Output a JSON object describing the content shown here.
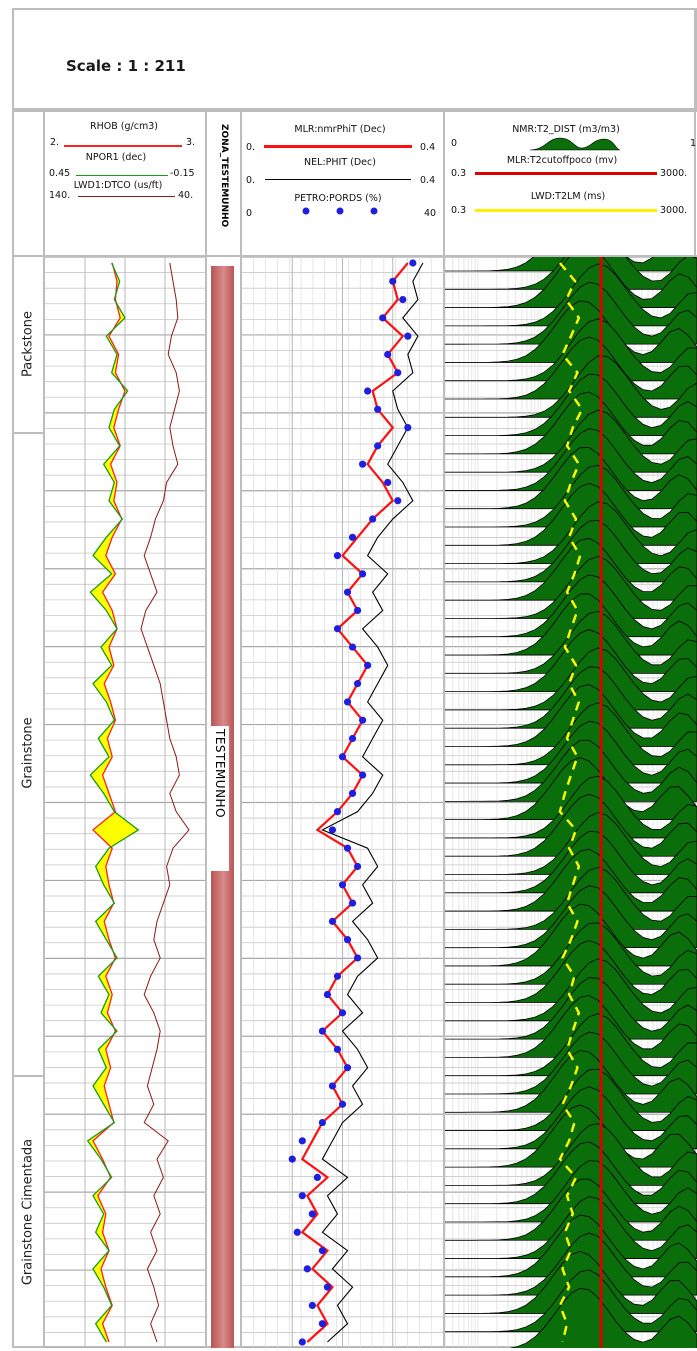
{
  "scale_label": "Scale : 1 : 211",
  "facies": [
    {
      "name": "Packstone"
    },
    {
      "name": "Grainstone"
    },
    {
      "name": "Grainstone Cimentada"
    }
  ],
  "zone": {
    "header": "ZONA_TESTEMUNHO",
    "label": "TESTEMUNHO"
  },
  "colors": {
    "rhob": "#ff2020",
    "npor": "#1a9a1a",
    "dtco": "#8b1a1a",
    "fill": "#ffff00",
    "nmr_phit": "#ff1010",
    "nel_phit": "#000000",
    "petro": "#1f1fe0",
    "t2dist": "#0a6e0a",
    "t2cutoff": "#dd0000",
    "t2lm": "#ffff00",
    "zone_bar": "#c96a6a",
    "grid": "#c8c8c8"
  },
  "tracks": {
    "track1": {
      "curves": [
        {
          "label": "RHOB (g/cm3)",
          "left": "2.",
          "right": "3."
        },
        {
          "label": "NPOR1 (dec)",
          "left": "0.45",
          "right": "-0.15"
        },
        {
          "label": "LWD1:DTCO (us/ft)",
          "left": "140.",
          "right": "40."
        }
      ]
    },
    "track3": {
      "curves": [
        {
          "label": "MLR:nmrPhiT (Dec)",
          "left": "0.",
          "right": "0.4"
        },
        {
          "label": "NEL:PHIT (Dec)",
          "left": "0.",
          "right": "0.4"
        },
        {
          "label": "PETRO:PORDS (%)",
          "left": "0",
          "right": "40"
        }
      ]
    },
    "track4": {
      "curves": [
        {
          "label": "NMR:T2_DIST (m3/m3)",
          "left": "0",
          "right": "1"
        },
        {
          "label": "MLR:T2cutoffpoco (mv)",
          "left": "0.3",
          "right": "3000."
        },
        {
          "label": "LWD:T2LM (ms)",
          "left": "0.3",
          "right": "3000."
        }
      ]
    }
  },
  "chart_data": {
    "type": "line",
    "depth_samples": 60,
    "facies_intervals": [
      {
        "name": "Packstone",
        "top_frac": 0.0,
        "base_frac": 0.16
      },
      {
        "name": "Grainstone",
        "top_frac": 0.16,
        "base_frac": 0.75
      },
      {
        "name": "Grainstone Cimentada",
        "top_frac": 0.75,
        "base_frac": 1.0
      }
    ],
    "series": [
      {
        "name": "RHOB",
        "range": [
          2.0,
          3.0
        ],
        "values": [
          2.42,
          2.45,
          2.44,
          2.47,
          2.4,
          2.46,
          2.44,
          2.5,
          2.46,
          2.43,
          2.47,
          2.41,
          2.45,
          2.43,
          2.48,
          2.42,
          2.38,
          2.44,
          2.36,
          2.42,
          2.45,
          2.4,
          2.43,
          2.37,
          2.41,
          2.44,
          2.39,
          2.42,
          2.36,
          2.4,
          2.44,
          2.3,
          2.42,
          2.38,
          2.4,
          2.43,
          2.37,
          2.4,
          2.44,
          2.38,
          2.42,
          2.39,
          2.44,
          2.38,
          2.41,
          2.37,
          2.4,
          2.43,
          2.3,
          2.36,
          2.41,
          2.33,
          2.38,
          2.36,
          2.4,
          2.35,
          2.38,
          2.42,
          2.36,
          2.4
        ]
      },
      {
        "name": "NPOR1",
        "range": [
          0.45,
          -0.15
        ],
        "values": [
          0.2,
          0.17,
          0.19,
          0.15,
          0.22,
          0.18,
          0.2,
          0.14,
          0.19,
          0.21,
          0.17,
          0.23,
          0.19,
          0.21,
          0.16,
          0.22,
          0.27,
          0.2,
          0.28,
          0.22,
          0.18,
          0.24,
          0.2,
          0.27,
          0.22,
          0.19,
          0.25,
          0.21,
          0.28,
          0.23,
          0.19,
          0.1,
          0.21,
          0.26,
          0.23,
          0.19,
          0.26,
          0.22,
          0.18,
          0.25,
          0.21,
          0.24,
          0.18,
          0.25,
          0.22,
          0.27,
          0.23,
          0.19,
          0.29,
          0.24,
          0.2,
          0.27,
          0.23,
          0.26,
          0.21,
          0.27,
          0.23,
          0.2,
          0.26,
          0.22
        ]
      },
      {
        "name": "DTCO",
        "range": [
          140,
          40
        ],
        "values": [
          62,
          60,
          58,
          57,
          61,
          63,
          58,
          56,
          59,
          62,
          60,
          57,
          64,
          66,
          71,
          74,
          78,
          74,
          70,
          77,
          80,
          76,
          72,
          68,
          66,
          64,
          62,
          58,
          56,
          62,
          58,
          50,
          60,
          64,
          62,
          66,
          70,
          72,
          68,
          74,
          78,
          72,
          68,
          70,
          73,
          76,
          72,
          78,
          63,
          70,
          66,
          72,
          68,
          74,
          70,
          76,
          72,
          69,
          74,
          70
        ]
      },
      {
        "name": "MLR:nmrPhiT",
        "range": [
          0,
          0.4
        ],
        "values": [
          0.33,
          0.3,
          0.31,
          0.28,
          0.32,
          0.29,
          0.31,
          0.26,
          0.27,
          0.3,
          0.27,
          0.25,
          0.28,
          0.3,
          0.26,
          0.23,
          0.2,
          0.24,
          0.21,
          0.23,
          0.19,
          0.22,
          0.25,
          0.23,
          0.21,
          0.24,
          0.22,
          0.2,
          0.24,
          0.22,
          0.19,
          0.15,
          0.21,
          0.23,
          0.2,
          0.22,
          0.18,
          0.21,
          0.23,
          0.19,
          0.17,
          0.2,
          0.16,
          0.19,
          0.21,
          0.18,
          0.2,
          0.16,
          0.14,
          0.12,
          0.17,
          0.13,
          0.15,
          0.12,
          0.17,
          0.14,
          0.18,
          0.15,
          0.17,
          0.13
        ]
      },
      {
        "name": "NEL:PHIT",
        "range": [
          0,
          0.4
        ],
        "values": [
          0.36,
          0.34,
          0.35,
          0.32,
          0.35,
          0.33,
          0.34,
          0.3,
          0.31,
          0.33,
          0.31,
          0.29,
          0.32,
          0.34,
          0.3,
          0.27,
          0.25,
          0.29,
          0.26,
          0.28,
          0.24,
          0.27,
          0.29,
          0.27,
          0.25,
          0.28,
          0.26,
          0.24,
          0.28,
          0.26,
          0.23,
          0.16,
          0.25,
          0.27,
          0.24,
          0.26,
          0.22,
          0.25,
          0.27,
          0.23,
          0.21,
          0.24,
          0.2,
          0.23,
          0.25,
          0.22,
          0.24,
          0.2,
          0.18,
          0.16,
          0.21,
          0.17,
          0.19,
          0.16,
          0.21,
          0.18,
          0.22,
          0.19,
          0.21,
          0.17
        ]
      },
      {
        "name": "PETRO:PORDS",
        "range": [
          0,
          40
        ],
        "values": [
          34,
          30,
          32,
          28,
          33,
          29,
          31,
          25,
          27,
          33,
          27,
          24,
          29,
          31,
          26,
          22,
          19,
          24,
          21,
          23,
          19,
          22,
          25,
          23,
          21,
          24,
          22,
          20,
          24,
          22,
          19,
          18,
          21,
          23,
          20,
          22,
          18,
          21,
          23,
          19,
          17,
          20,
          16,
          19,
          21,
          18,
          20,
          16,
          12,
          10,
          15,
          12,
          14,
          11,
          16,
          13,
          17,
          14,
          16,
          12
        ]
      },
      {
        "name": "LWD:T2LM",
        "range": [
          0.3,
          3000
        ],
        "scale": "log",
        "values": [
          20,
          35,
          25,
          40,
          30,
          22,
          38,
          28,
          45,
          32,
          26,
          40,
          30,
          24,
          36,
          28,
          42,
          34,
          26,
          38,
          30,
          24,
          36,
          28,
          40,
          32,
          26,
          38,
          30,
          24,
          20,
          36,
          28,
          40,
          32,
          26,
          38,
          30,
          22,
          34,
          28,
          40,
          32,
          26,
          38,
          30,
          22,
          34,
          28,
          20,
          36,
          26,
          32,
          24,
          30,
          22,
          28,
          20,
          26,
          22
        ]
      },
      {
        "name": "MLR:T2cutoffpoco",
        "range": [
          0.3,
          3000
        ],
        "scale": "log",
        "values": [
          90
        ]
      }
    ]
  }
}
